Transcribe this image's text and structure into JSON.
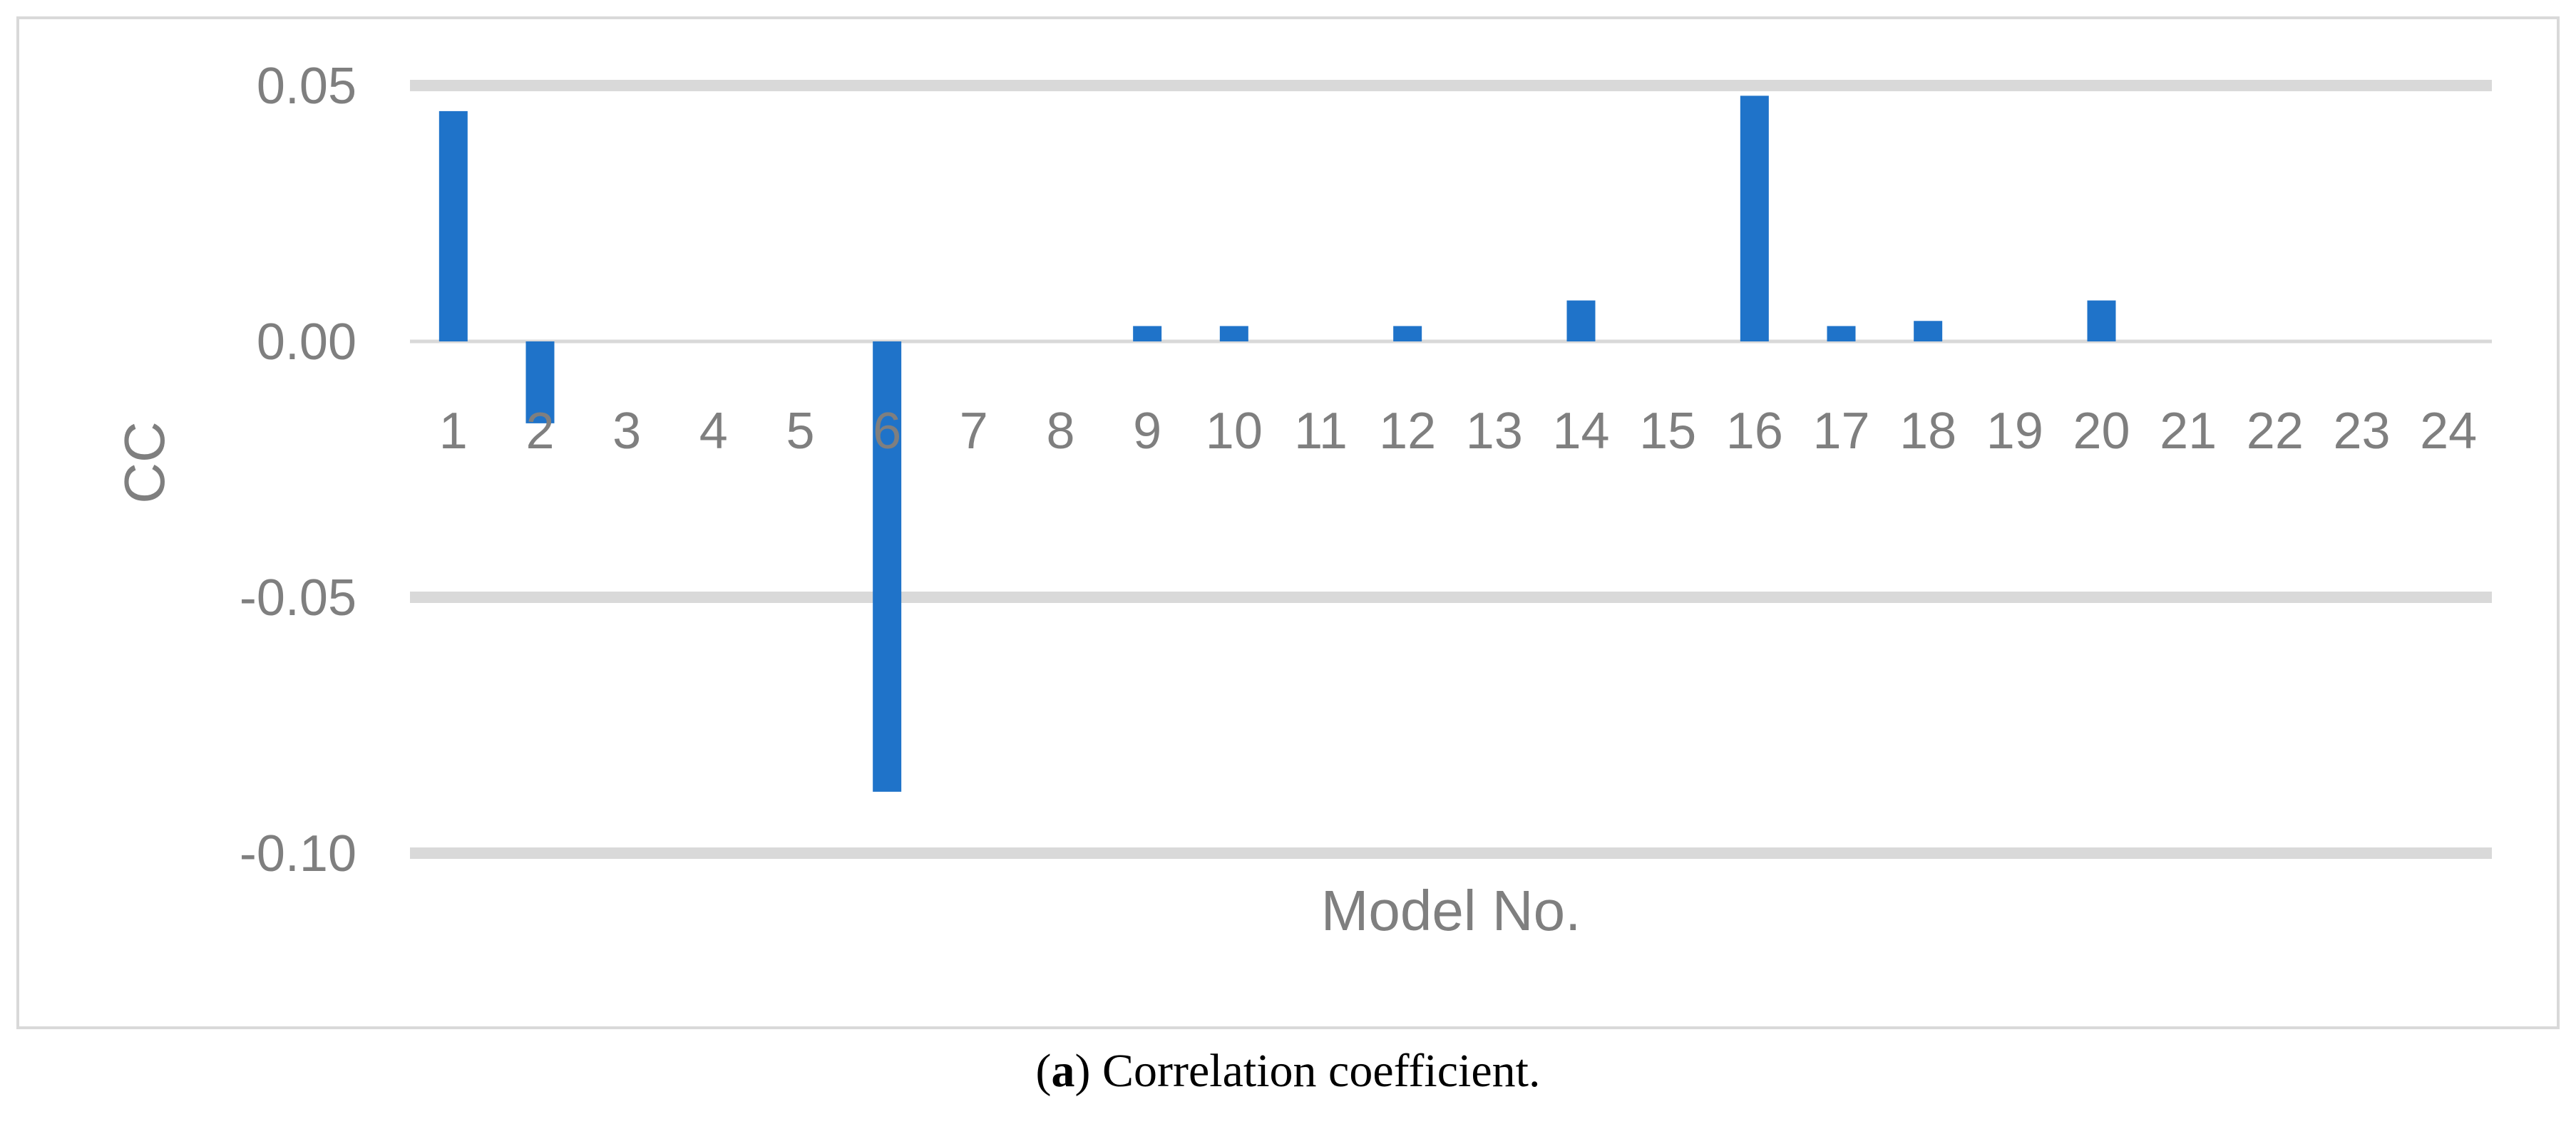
{
  "chart_data": {
    "type": "bar",
    "categories": [
      "1",
      "2",
      "3",
      "4",
      "5",
      "6",
      "7",
      "8",
      "9",
      "10",
      "11",
      "12",
      "13",
      "14",
      "15",
      "16",
      "17",
      "18",
      "19",
      "20",
      "21",
      "22",
      "23",
      "24"
    ],
    "values": [
      0.045,
      -0.016,
      0,
      0,
      0,
      -0.088,
      0,
      0,
      0.003,
      0.003,
      0,
      0.003,
      0,
      0.008,
      0,
      0.048,
      0.003,
      0.004,
      0,
      0.008,
      0,
      0,
      0,
      0
    ],
    "xlabel": "Model No.",
    "ylabel": "CC",
    "ylim": [
      -0.1,
      0.05
    ],
    "yticks": [
      "0.05",
      "0.00",
      "-0.05",
      "-0.10"
    ],
    "ytick_values": [
      0.05,
      0.0,
      -0.05,
      -0.1
    ],
    "grid": true,
    "colors": {
      "bar": "#1f73c9",
      "grid": "#d9d9d9",
      "text": "#7f7f7f",
      "frame": "#d9d9d9"
    }
  },
  "caption": {
    "label": "a",
    "text": " Correlation coefficient."
  }
}
